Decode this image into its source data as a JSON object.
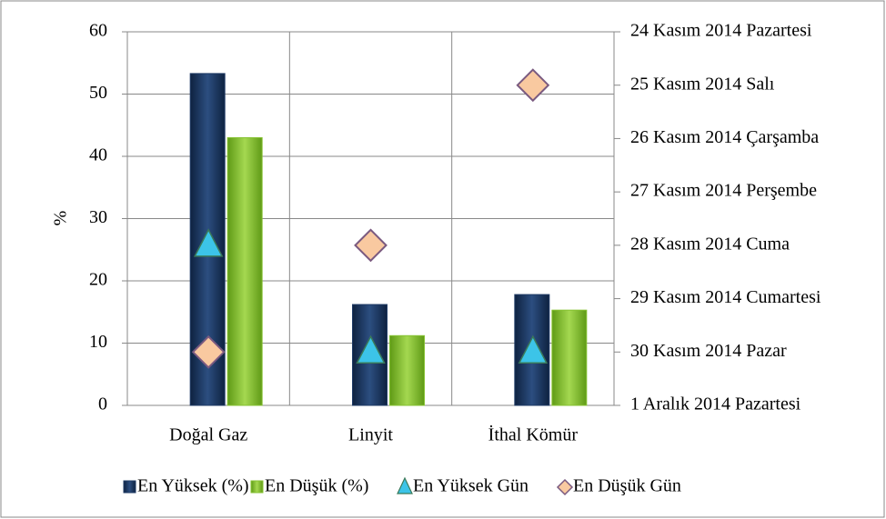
{
  "chart_data": {
    "type": "bar",
    "y_label": "%",
    "categories": [
      "Doğal Gaz",
      "Linyit",
      "İthal Kömür"
    ],
    "ylim": [
      0,
      60
    ],
    "yticks": [
      0,
      10,
      20,
      30,
      40,
      50,
      60
    ],
    "y2lim": [
      0,
      7
    ],
    "y2ticks": [
      {
        "value": 0,
        "label": "1 Aralık 2014 Pazartesi"
      },
      {
        "value": 1,
        "label": "30 Kasım 2014 Pazar"
      },
      {
        "value": 2,
        "label": "29 Kasım 2014 Cumartesi"
      },
      {
        "value": 3,
        "label": "28 Kasım 2014 Cuma"
      },
      {
        "value": 4,
        "label": "27 Kasım 2014 Perşembe"
      },
      {
        "value": 5,
        "label": "26 Kasım 2014 Çarşamba"
      },
      {
        "value": 6,
        "label": "25 Kasım 2014 Salı"
      },
      {
        "value": 7,
        "label": "24 Kasım 2014 Pazartesi"
      }
    ],
    "grid": true,
    "legend": "bottom",
    "series": [
      {
        "name": "En Yüksek (%)",
        "color": "#1f3b66",
        "values": [
          53.3,
          16.2,
          17.8
        ]
      },
      {
        "name": "En Düşük (%)",
        "color": "#86c232",
        "values": [
          43,
          11.2,
          15.3
        ]
      },
      {
        "name": "En Yüksek Gün",
        "color": "#3cc4e8",
        "marker": "triangle",
        "axis": "y2",
        "values": [
          3,
          1,
          1
        ]
      },
      {
        "name": "En Düşük Gün",
        "color": "#f9c9a0",
        "marker": "diamond",
        "axis": "y2",
        "values": [
          1,
          3,
          6
        ]
      }
    ]
  }
}
